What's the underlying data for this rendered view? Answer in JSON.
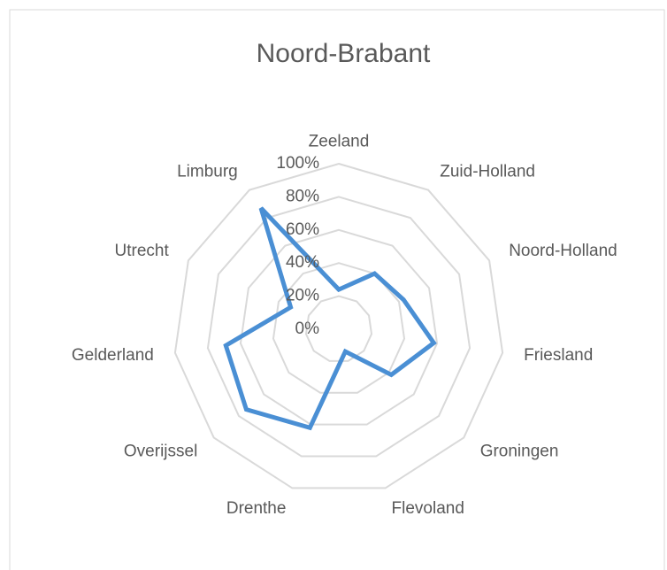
{
  "chart_data": {
    "type": "radar",
    "title": "Noord-Brabant",
    "categories": [
      "Zeeland",
      "Zuid-Holland",
      "Noord-Holland",
      "Friesland",
      "Groningen",
      "Flevoland",
      "Drenthe",
      "Overijssel",
      "Gelderland",
      "Utrecht",
      "Limburg"
    ],
    "series": [
      {
        "name": "Noord-Brabant",
        "color": "#4a8fd4",
        "values": [
          24,
          40,
          43,
          58,
          42,
          14,
          62,
          74,
          69,
          32,
          87
        ]
      }
    ],
    "ylim": [
      0,
      100
    ],
    "yticks": [
      {
        "value": 0,
        "label": "0%"
      },
      {
        "value": 20,
        "label": "20%"
      },
      {
        "value": 40,
        "label": "40%"
      },
      {
        "value": 60,
        "label": "60%"
      },
      {
        "value": 80,
        "label": "80%"
      },
      {
        "value": 100,
        "label": "100%"
      }
    ],
    "grid": true
  }
}
